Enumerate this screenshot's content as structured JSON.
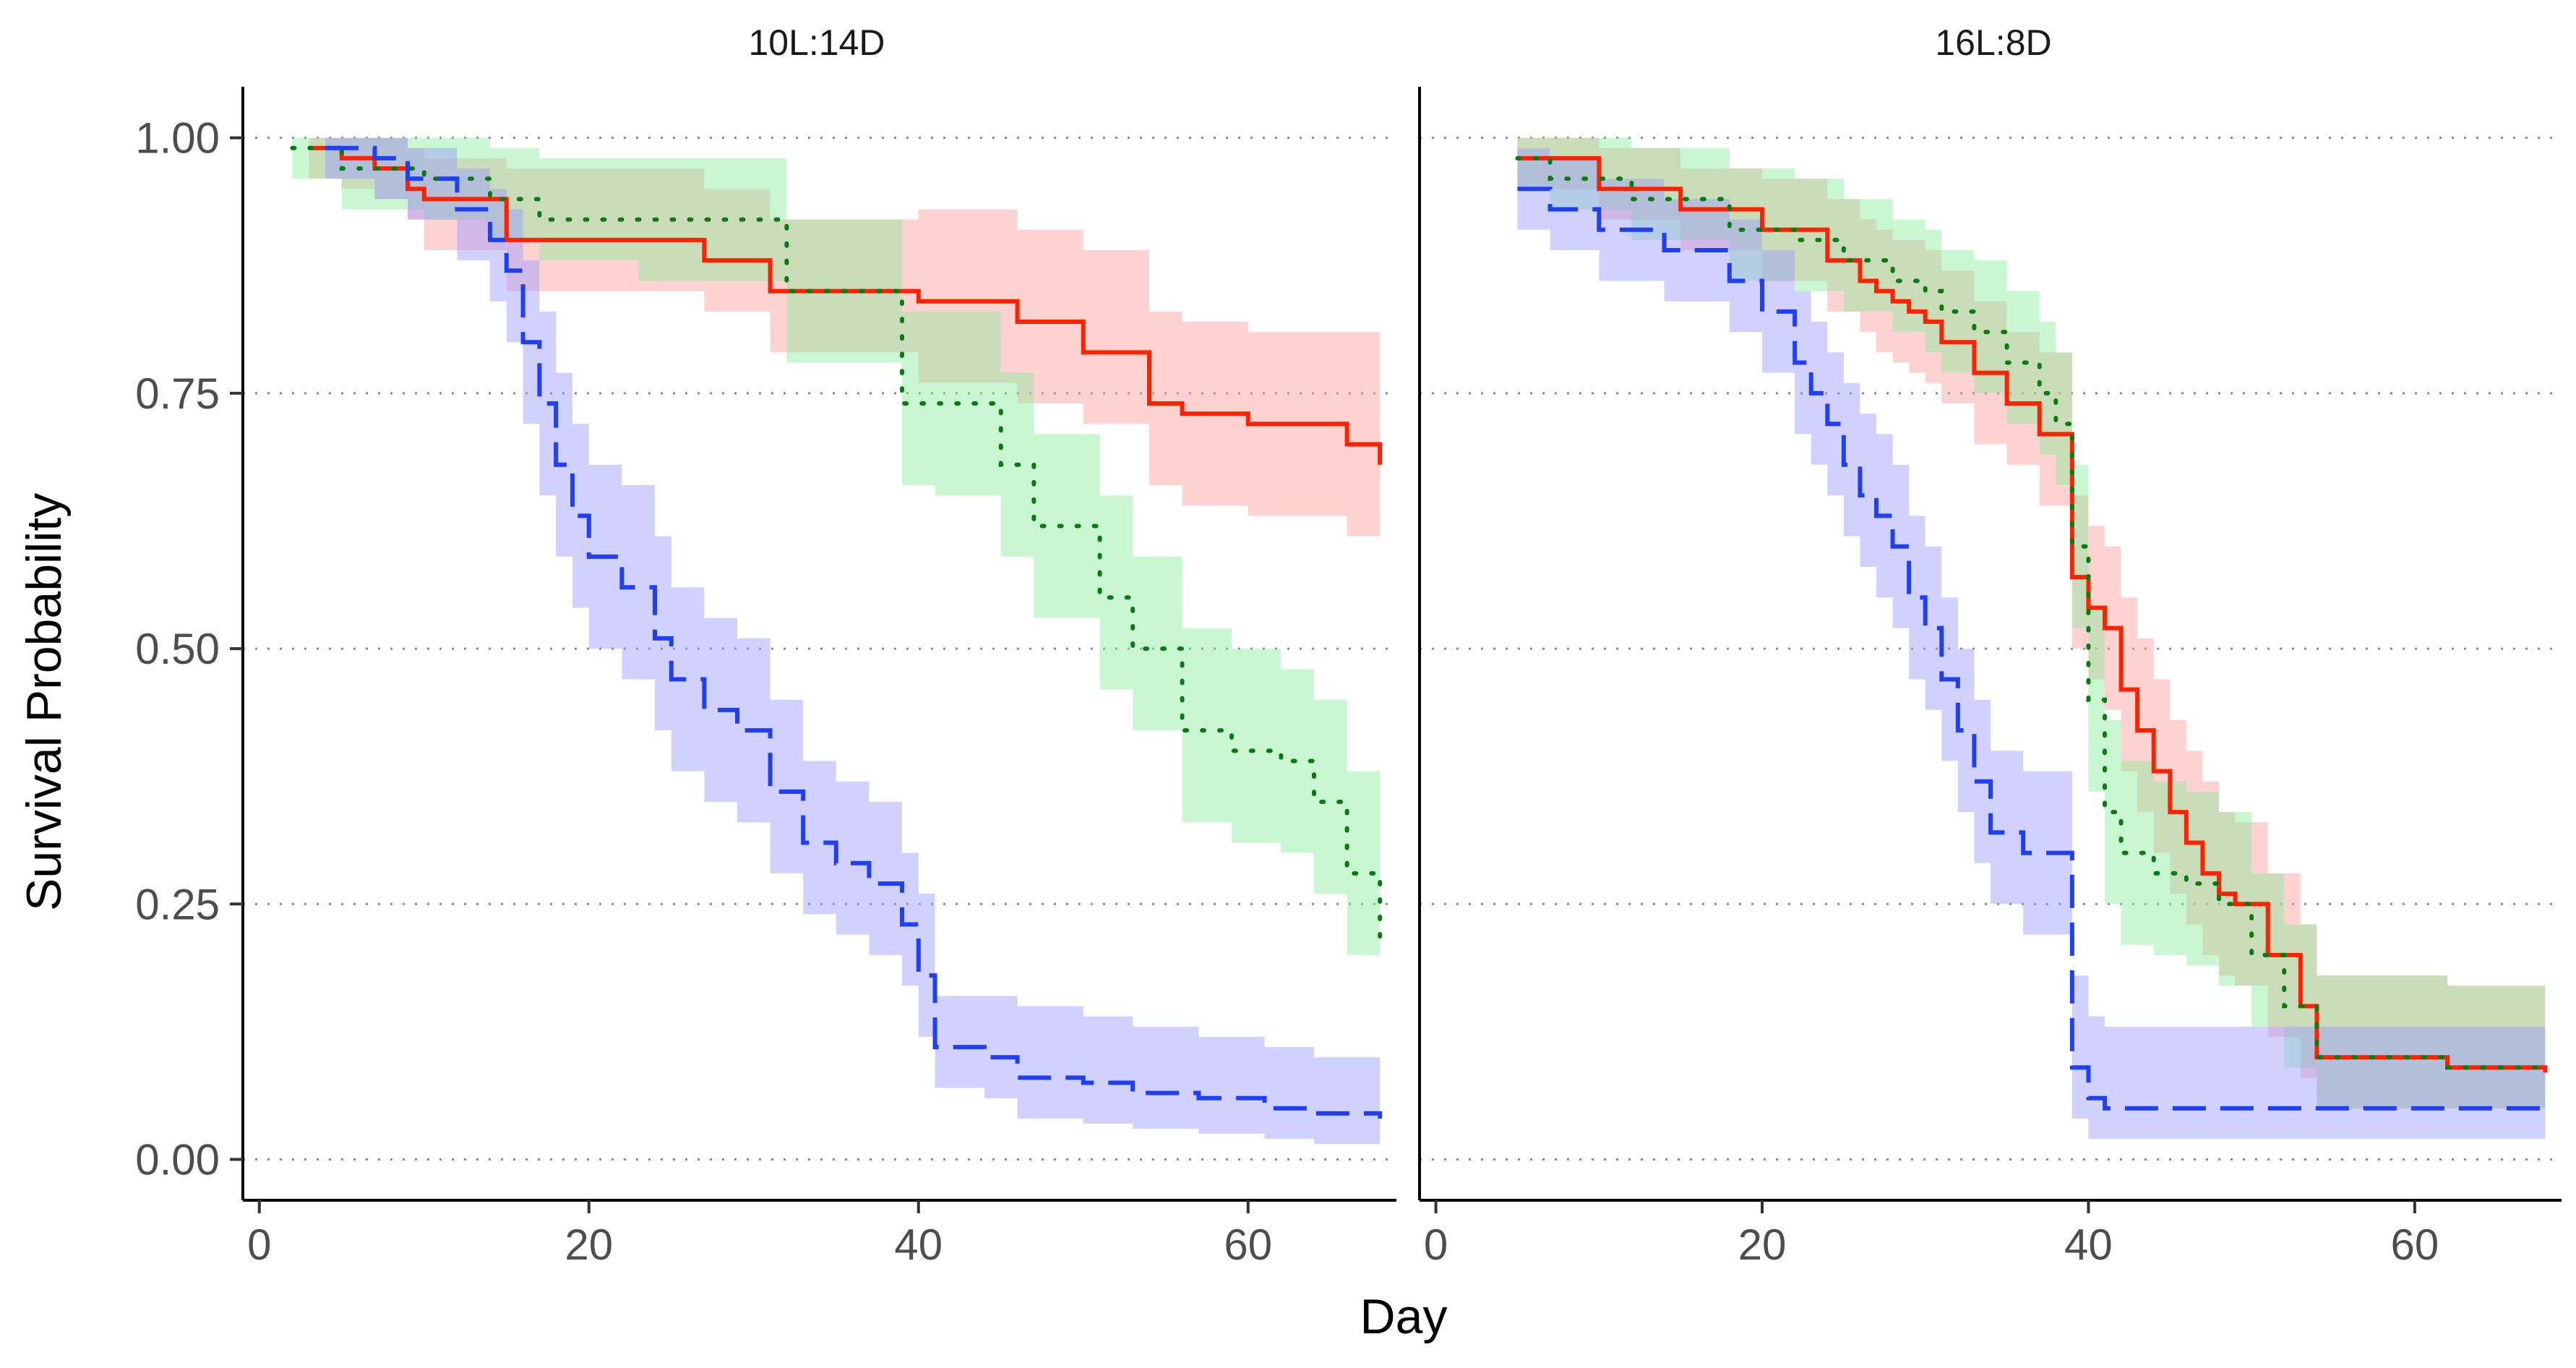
{
  "chart_data": {
    "type": "line",
    "subtype": "kaplan-meier survival curves with confidence bands",
    "ylabel": "Survival Probability",
    "xlabel": "Day",
    "xlim": [
      -1,
      69
    ],
    "ylim": [
      -0.04,
      1.05
    ],
    "x_ticks": [
      0,
      20,
      40,
      60
    ],
    "x_tick_labels": [
      "0",
      "20",
      "40",
      "60"
    ],
    "y_ticks": [
      0,
      0.25,
      0.5,
      0.75,
      1
    ],
    "y_tick_labels": [
      "0.00",
      "0.25",
      "0.50",
      "0.75",
      "1.00"
    ],
    "grid": "horizontal dotted",
    "colors": {
      "red": "#ff2200",
      "green": "#0a7a12",
      "blue": "#1f3ff5",
      "red_band": "#ff9c9c",
      "green_band": "#88ee99",
      "blue_band": "#9898ff"
    },
    "panels": [
      {
        "title": "10L:14D",
        "series": [
          {
            "color_key": "red",
            "band_key": "red_band",
            "dash": "solid",
            "x": [
              3,
              5,
              7,
              9,
              10,
              12,
              15,
              27,
              31,
              40,
              46,
              50,
              54,
              56,
              60,
              66,
              68
            ],
            "y": [
              0.99,
              0.98,
              0.97,
              0.95,
              0.94,
              0.94,
              0.9,
              0.88,
              0.85,
              0.84,
              0.82,
              0.79,
              0.74,
              0.73,
              0.72,
              0.7,
              0.68
            ],
            "lower": [
              0.96,
              0.95,
              0.94,
              0.92,
              0.89,
              0.89,
              0.85,
              0.83,
              0.79,
              0.76,
              0.74,
              0.72,
              0.66,
              0.64,
              0.63,
              0.61,
              0.61
            ],
            "upper": [
              1.0,
              1.0,
              1.0,
              0.99,
              0.98,
              0.98,
              0.97,
              0.95,
              0.92,
              0.93,
              0.91,
              0.89,
              0.83,
              0.82,
              0.81,
              0.81,
              0.81
            ]
          },
          {
            "color_key": "green",
            "band_key": "green_band",
            "dash": "dotted",
            "x": [
              2,
              5,
              10,
              14,
              17,
              23,
              32,
              39,
              41,
              45,
              47,
              51,
              53,
              56,
              59,
              62,
              64,
              66,
              68
            ],
            "y": [
              0.99,
              0.97,
              0.96,
              0.94,
              0.92,
              0.92,
              0.85,
              0.74,
              0.74,
              0.68,
              0.62,
              0.55,
              0.5,
              0.42,
              0.4,
              0.39,
              0.35,
              0.28,
              0.21
            ],
            "lower": [
              0.96,
              0.93,
              0.92,
              0.9,
              0.88,
              0.86,
              0.78,
              0.66,
              0.65,
              0.59,
              0.53,
              0.46,
              0.42,
              0.33,
              0.31,
              0.3,
              0.26,
              0.2,
              0.16
            ],
            "upper": [
              1.0,
              1.0,
              1.0,
              0.99,
              0.98,
              0.98,
              0.92,
              0.83,
              0.83,
              0.77,
              0.71,
              0.65,
              0.59,
              0.52,
              0.5,
              0.48,
              0.45,
              0.38,
              0.3
            ]
          },
          {
            "color_key": "blue",
            "band_key": "blue_band",
            "dash": "dashed",
            "x": [
              4,
              7,
              9,
              12,
              14,
              15,
              16,
              17,
              18,
              19,
              20,
              22,
              24,
              25,
              27,
              29,
              31,
              33,
              35,
              37,
              39,
              40,
              41,
              44,
              46,
              50,
              53,
              57,
              61,
              64,
              68
            ],
            "y": [
              0.99,
              0.98,
              0.96,
              0.93,
              0.9,
              0.87,
              0.8,
              0.74,
              0.68,
              0.63,
              0.59,
              0.56,
              0.51,
              0.47,
              0.44,
              0.42,
              0.36,
              0.31,
              0.29,
              0.27,
              0.23,
              0.18,
              0.11,
              0.1,
              0.08,
              0.075,
              0.065,
              0.06,
              0.05,
              0.045,
              0.04
            ],
            "lower": [
              0.96,
              0.94,
              0.92,
              0.88,
              0.84,
              0.8,
              0.72,
              0.65,
              0.59,
              0.54,
              0.5,
              0.47,
              0.42,
              0.38,
              0.35,
              0.33,
              0.28,
              0.24,
              0.22,
              0.2,
              0.17,
              0.12,
              0.07,
              0.06,
              0.04,
              0.035,
              0.03,
              0.025,
              0.02,
              0.015,
              0.01
            ],
            "upper": [
              1.0,
              1.0,
              0.99,
              0.97,
              0.95,
              0.93,
              0.88,
              0.83,
              0.77,
              0.72,
              0.68,
              0.66,
              0.61,
              0.56,
              0.53,
              0.51,
              0.45,
              0.39,
              0.37,
              0.35,
              0.3,
              0.26,
              0.16,
              0.16,
              0.15,
              0.14,
              0.13,
              0.12,
              0.11,
              0.1,
              0.1
            ]
          }
        ]
      },
      {
        "title": "16L:8D",
        "series": [
          {
            "color_key": "red",
            "band_key": "red_band",
            "dash": "solid",
            "x": [
              5,
              10,
              15,
              20,
              24,
              26,
              27,
              28,
              29,
              30,
              31,
              33,
              35,
              37,
              39,
              40,
              41,
              42,
              43,
              44,
              45,
              46,
              47,
              48,
              49,
              51,
              53,
              54,
              62,
              68
            ],
            "y": [
              0.98,
              0.95,
              0.93,
              0.91,
              0.88,
              0.86,
              0.85,
              0.84,
              0.83,
              0.82,
              0.8,
              0.77,
              0.74,
              0.71,
              0.57,
              0.54,
              0.52,
              0.46,
              0.42,
              0.38,
              0.34,
              0.31,
              0.28,
              0.26,
              0.25,
              0.2,
              0.15,
              0.1,
              0.09,
              0.085
            ],
            "lower": [
              0.95,
              0.92,
              0.89,
              0.86,
              0.83,
              0.81,
              0.79,
              0.78,
              0.77,
              0.76,
              0.74,
              0.7,
              0.68,
              0.64,
              0.5,
              0.47,
              0.44,
              0.38,
              0.34,
              0.3,
              0.26,
              0.23,
              0.2,
              0.18,
              0.17,
              0.12,
              0.08,
              0.05,
              0.05,
              0.04
            ],
            "upper": [
              1.0,
              0.99,
              0.97,
              0.96,
              0.94,
              0.92,
              0.91,
              0.9,
              0.9,
              0.89,
              0.87,
              0.84,
              0.81,
              0.79,
              0.65,
              0.62,
              0.6,
              0.55,
              0.51,
              0.47,
              0.43,
              0.4,
              0.37,
              0.34,
              0.33,
              0.28,
              0.23,
              0.18,
              0.17,
              0.16
            ]
          },
          {
            "color_key": "green",
            "band_key": "green_band",
            "dash": "dotted",
            "x": [
              5,
              7,
              12,
              18,
              22,
              25,
              28,
              30,
              31,
              33,
              35,
              37,
              38,
              39,
              40,
              41,
              42,
              44,
              46,
              48,
              50,
              52,
              54,
              62,
              68
            ],
            "y": [
              0.98,
              0.96,
              0.94,
              0.91,
              0.9,
              0.88,
              0.86,
              0.85,
              0.83,
              0.81,
              0.78,
              0.75,
              0.72,
              0.6,
              0.45,
              0.34,
              0.3,
              0.28,
              0.27,
              0.25,
              0.2,
              0.15,
              0.1,
              0.09,
              0.085
            ],
            "lower": [
              0.95,
              0.93,
              0.9,
              0.86,
              0.85,
              0.83,
              0.81,
              0.79,
              0.77,
              0.75,
              0.72,
              0.69,
              0.66,
              0.52,
              0.36,
              0.25,
              0.21,
              0.2,
              0.19,
              0.17,
              0.13,
              0.09,
              0.05,
              0.05,
              0.04
            ],
            "upper": [
              1.0,
              1.0,
              0.99,
              0.97,
              0.96,
              0.94,
              0.92,
              0.91,
              0.89,
              0.88,
              0.85,
              0.82,
              0.79,
              0.68,
              0.54,
              0.43,
              0.39,
              0.37,
              0.36,
              0.34,
              0.28,
              0.23,
              0.18,
              0.17,
              0.16
            ]
          },
          {
            "color_key": "blue",
            "band_key": "blue_band",
            "dash": "dashed",
            "x": [
              5,
              7,
              10,
              14,
              18,
              20,
              22,
              23,
              24,
              25,
              26,
              27,
              28,
              29,
              30,
              31,
              32,
              33,
              34,
              36,
              39,
              40,
              41,
              54,
              68
            ],
            "y": [
              0.95,
              0.93,
              0.91,
              0.89,
              0.86,
              0.83,
              0.78,
              0.75,
              0.72,
              0.68,
              0.65,
              0.63,
              0.6,
              0.55,
              0.52,
              0.47,
              0.42,
              0.37,
              0.32,
              0.3,
              0.09,
              0.06,
              0.05,
              0.05,
              0.05
            ],
            "lower": [
              0.91,
              0.89,
              0.86,
              0.84,
              0.81,
              0.77,
              0.71,
              0.68,
              0.65,
              0.61,
              0.58,
              0.55,
              0.52,
              0.47,
              0.44,
              0.39,
              0.34,
              0.29,
              0.25,
              0.22,
              0.04,
              0.02,
              0.02,
              0.02,
              0.02
            ],
            "upper": [
              0.99,
              0.98,
              0.96,
              0.94,
              0.92,
              0.89,
              0.85,
              0.82,
              0.79,
              0.76,
              0.73,
              0.71,
              0.68,
              0.63,
              0.6,
              0.55,
              0.5,
              0.45,
              0.4,
              0.38,
              0.18,
              0.14,
              0.13,
              0.13,
              0.13
            ]
          }
        ]
      }
    ]
  }
}
